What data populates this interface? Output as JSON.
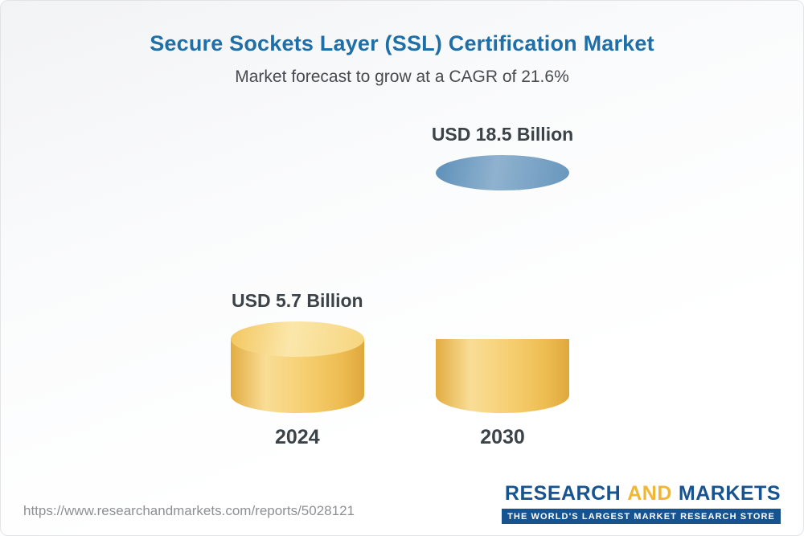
{
  "page": {
    "title": "Secure Sockets Layer (SSL) Certification Market",
    "subtitle": "Market forecast to grow at a CAGR of 21.6%",
    "footer_url": "https://www.researchandmarkets.com/reports/5028121"
  },
  "chart_data": {
    "type": "bar",
    "title": "Secure Sockets Layer (SSL) Certification Market",
    "subtitle": "Market forecast to grow at a CAGR of 21.6%",
    "cagr_percent": 21.6,
    "unit": "USD Billion",
    "categories": [
      "2024",
      "2030"
    ],
    "values": [
      5.7,
      18.5
    ],
    "value_labels": [
      "USD 5.7 Billion",
      "USD 18.5 Billion"
    ],
    "legend": "none",
    "grid": false,
    "colors": {
      "bar_2024": "#f6cf72",
      "bar_2030_top": "#5f90ba",
      "bar_2030_base": "#f6cf72",
      "title_text": "#1e6fa8",
      "label_text": "#3b4248"
    }
  },
  "logo": {
    "word1": "RESEARCH",
    "word2": "AND",
    "word3": "MARKETS",
    "tagline": "THE WORLD'S LARGEST MARKET RESEARCH STORE"
  }
}
